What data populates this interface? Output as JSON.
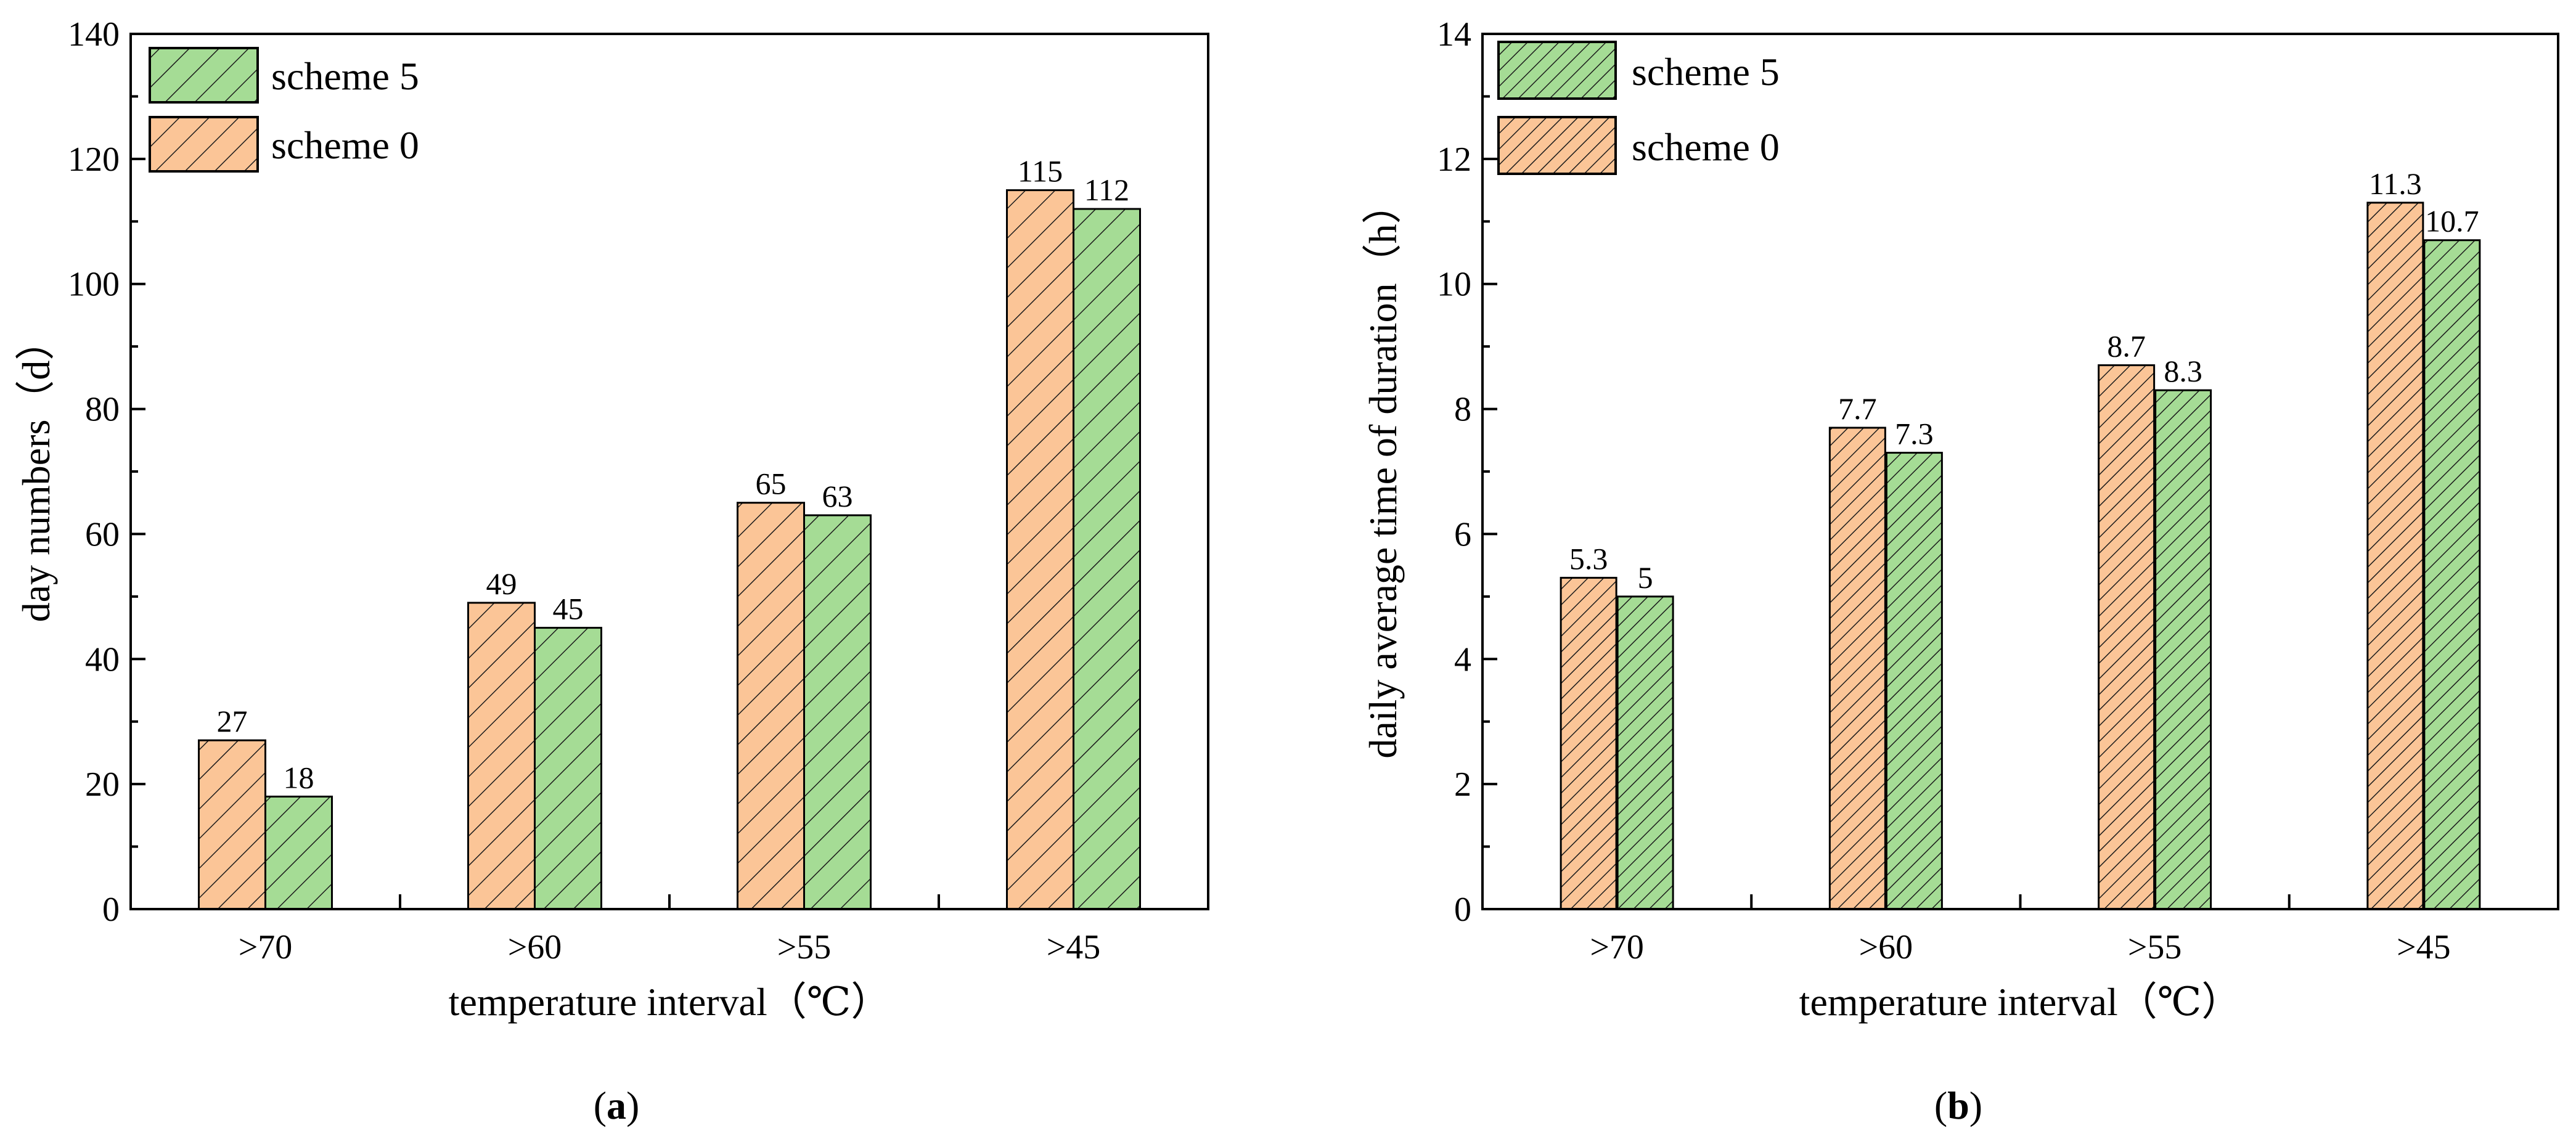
{
  "chart_data": [
    {
      "type": "bar",
      "panel_label": "a",
      "categories": [
        ">70",
        ">60",
        ">55",
        ">45"
      ],
      "series": [
        {
          "name": "scheme 0",
          "values": [
            27,
            49,
            65,
            115
          ]
        },
        {
          "name": "scheme 5",
          "values": [
            18,
            45,
            63,
            112
          ]
        }
      ],
      "data_labels": [
        [
          "27",
          "49",
          "65",
          "115"
        ],
        [
          "18",
          "45",
          "63",
          "112"
        ]
      ],
      "xlabel": "temperature interval（℃）",
      "ylabel": "day numbers（d）",
      "ylim": [
        0,
        140
      ],
      "yticks": [
        0,
        20,
        40,
        60,
        80,
        100,
        120,
        140
      ],
      "legend": [
        "scheme 5",
        "scheme 0"
      ],
      "legend_position": "top-left",
      "grid": false
    },
    {
      "type": "bar",
      "panel_label": "b",
      "categories": [
        ">70",
        ">60",
        ">55",
        ">45"
      ],
      "series": [
        {
          "name": "scheme 0",
          "values": [
            5.3,
            7.7,
            8.7,
            11.3
          ]
        },
        {
          "name": "scheme 5",
          "values": [
            5,
            7.3,
            8.3,
            10.7
          ]
        }
      ],
      "data_labels": [
        [
          "5.3",
          "7.7",
          "8.7",
          "11.3"
        ],
        [
          "5",
          "7.3",
          "8.3",
          "10.7"
        ]
      ],
      "xlabel": "temperature interval（℃）",
      "ylabel": "daily average time of duration（h）",
      "ylim": [
        0,
        14
      ],
      "yticks": [
        0,
        2,
        4,
        6,
        8,
        10,
        12,
        14
      ],
      "legend": [
        "scheme 5",
        "scheme 0"
      ],
      "legend_position": "top-left",
      "grid": false
    }
  ],
  "colors": {
    "scheme 0": "#fbc597",
    "scheme 5": "#a5dc95"
  }
}
